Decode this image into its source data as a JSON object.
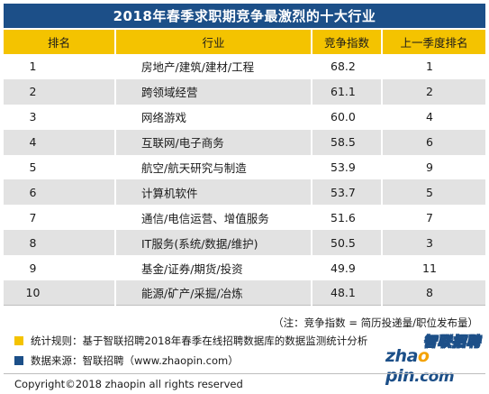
{
  "title": "2018年春季求职期竞争最激烈的十大行业",
  "columns": {
    "rank": "排名",
    "industry": "行业",
    "index": "竞争指数",
    "prev": "上一季度排名"
  },
  "rows": [
    {
      "rank": "1",
      "industry": "房地产/建筑/建材/工程",
      "index": "68.2",
      "prev": "1"
    },
    {
      "rank": "2",
      "industry": "跨领域经营",
      "index": "61.1",
      "prev": "2"
    },
    {
      "rank": "3",
      "industry": "网络游戏",
      "index": "60.0",
      "prev": "4"
    },
    {
      "rank": "4",
      "industry": "互联网/电子商务",
      "index": "58.5",
      "prev": "6"
    },
    {
      "rank": "5",
      "industry": "航空/航天研究与制造",
      "index": "53.9",
      "prev": "9"
    },
    {
      "rank": "6",
      "industry": "计算机软件",
      "index": "53.7",
      "prev": "5"
    },
    {
      "rank": "7",
      "industry": "通信/电信运营、增值服务",
      "index": "51.6",
      "prev": "7"
    },
    {
      "rank": "8",
      "industry": "IT服务(系统/数据/维护)",
      "index": "50.5",
      "prev": "3"
    },
    {
      "rank": "9",
      "industry": "基金/证券/期货/投资",
      "index": "49.9",
      "prev": "11"
    },
    {
      "rank": "10",
      "industry": "能源/矿产/采掘/冶炼",
      "index": "48.1",
      "prev": "8"
    }
  ],
  "note": "（注：竞争指数 = 简历投递量/职位发布量）",
  "legend": {
    "rule": "统计规则：基于智联招聘2018年春季在线招聘数据库的数据监测统计分析",
    "source": "数据来源：智联招聘（www.zhaopin.com）"
  },
  "logo": {
    "cn": "智联招聘",
    "en_pre": "zha",
    "en_o": "o",
    "en_post": "pin",
    "en_suffix": ".com"
  },
  "copyright": "Copyright©2018 zhaopin all rights reserved",
  "colors": {
    "title_bg": "#1c4f88",
    "header_bg": "#f4c300",
    "legend_rule": "#f4c300",
    "legend_source": "#1c4f88",
    "stripe": "#e2e2e2"
  }
}
